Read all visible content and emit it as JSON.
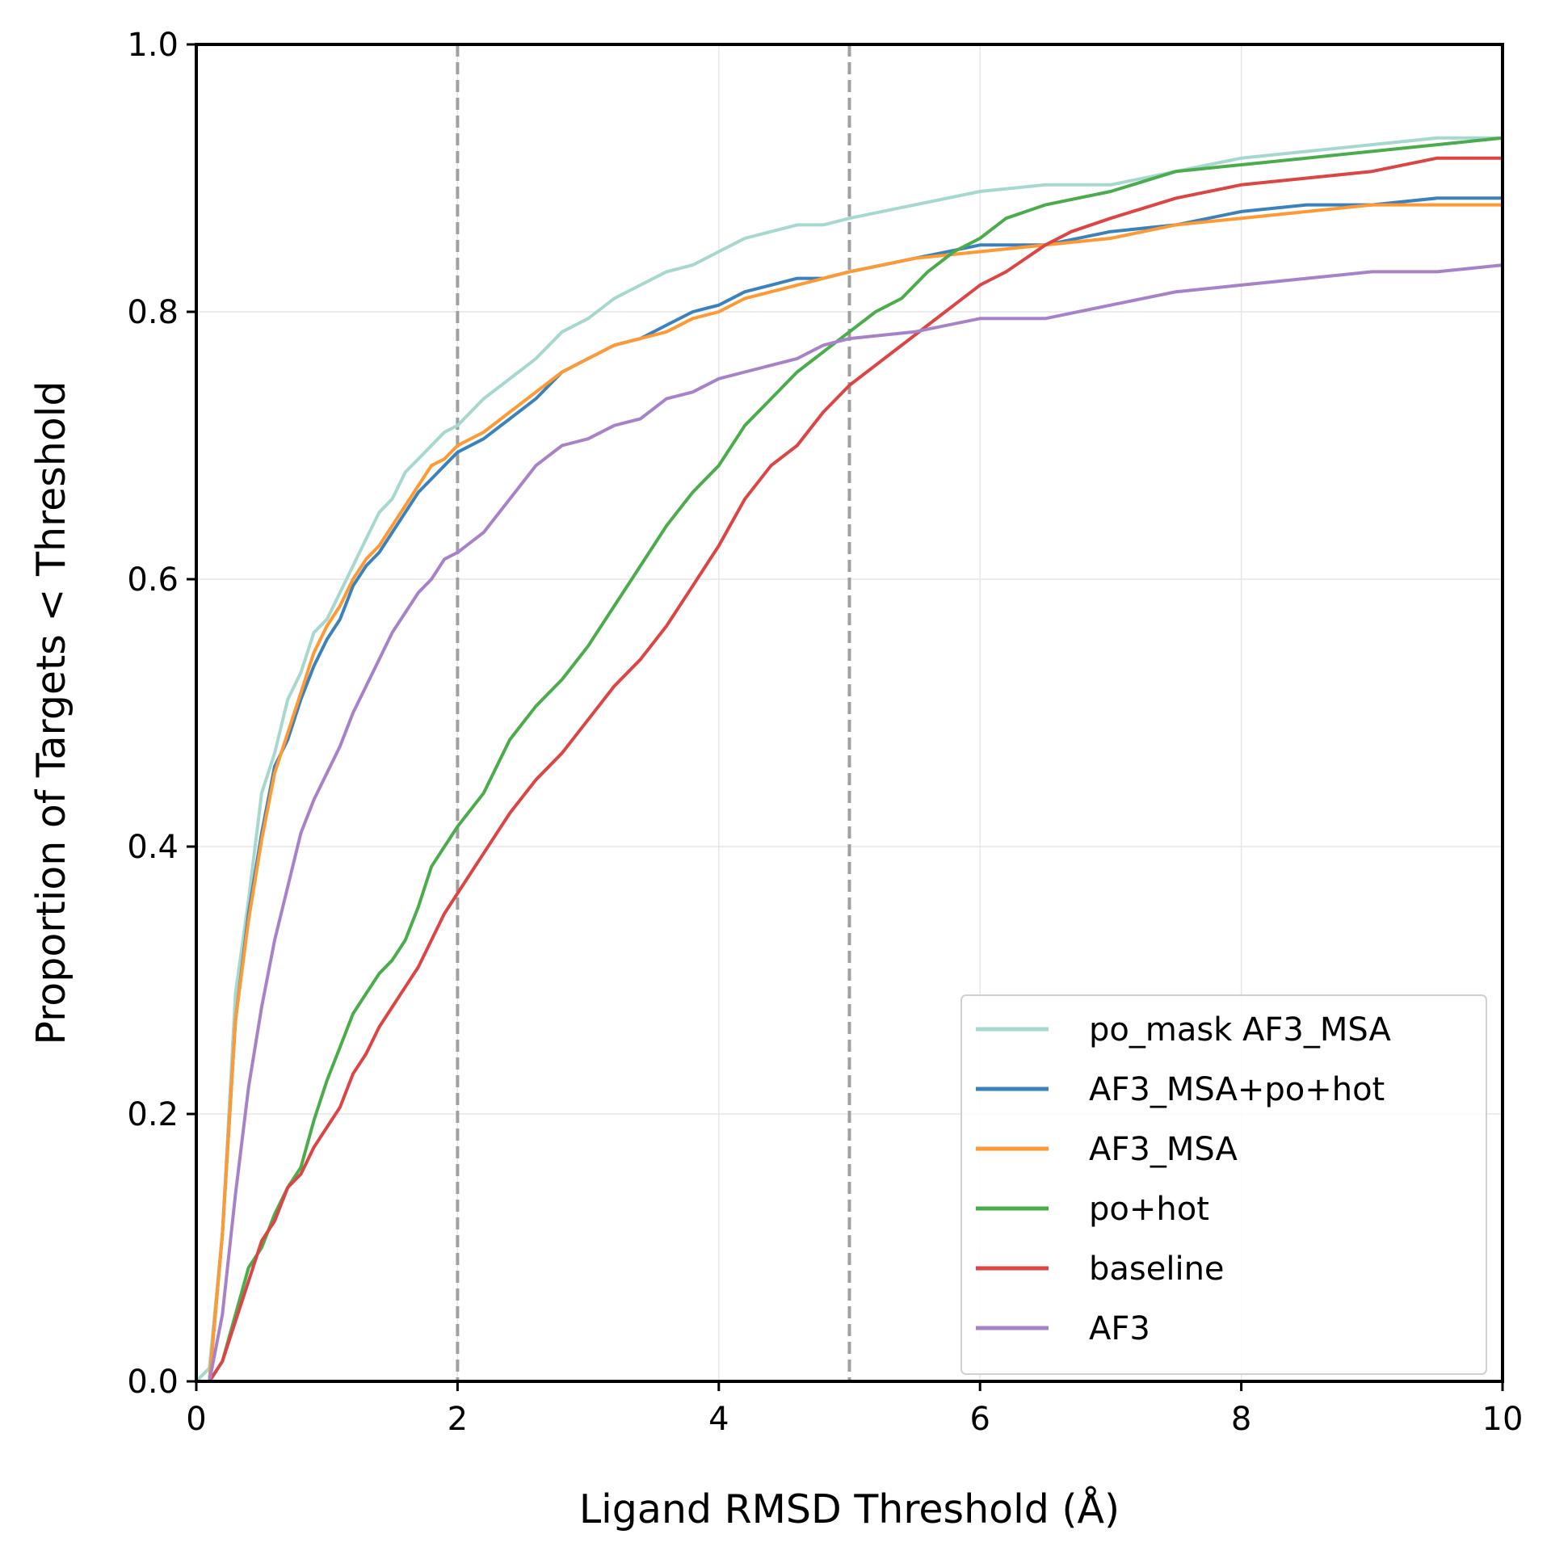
{
  "chart_data": {
    "type": "line",
    "title": "",
    "xlabel": "Ligand RMSD Threshold (Å)",
    "ylabel": "Proportion of Targets < Threshold",
    "xlim": [
      0,
      10
    ],
    "ylim": [
      0,
      1
    ],
    "xticks": [
      "0",
      "2",
      "4",
      "6",
      "8",
      "10"
    ],
    "yticks": [
      "0.0",
      "0.2",
      "0.4",
      "0.6",
      "0.8",
      "1.0"
    ],
    "grid": true,
    "legend_position": "lower-right",
    "reference_lines": [
      2,
      5
    ],
    "reference_line_color": "#a0a0a0",
    "series": [
      {
        "name": "po_mask AF3_MSA",
        "color": "#a6d8cf",
        "points": [
          [
            0,
            0
          ],
          [
            0.1,
            0.01
          ],
          [
            0.2,
            0.11
          ],
          [
            0.3,
            0.29
          ],
          [
            0.4,
            0.36
          ],
          [
            0.5,
            0.44
          ],
          [
            0.6,
            0.47
          ],
          [
            0.7,
            0.51
          ],
          [
            0.8,
            0.53
          ],
          [
            0.9,
            0.56
          ],
          [
            1.0,
            0.57
          ],
          [
            1.1,
            0.59
          ],
          [
            1.2,
            0.61
          ],
          [
            1.3,
            0.63
          ],
          [
            1.4,
            0.65
          ],
          [
            1.5,
            0.66
          ],
          [
            1.6,
            0.68
          ],
          [
            1.7,
            0.69
          ],
          [
            1.8,
            0.7
          ],
          [
            1.9,
            0.71
          ],
          [
            2.0,
            0.715
          ],
          [
            2.2,
            0.735
          ],
          [
            2.4,
            0.75
          ],
          [
            2.6,
            0.765
          ],
          [
            2.8,
            0.785
          ],
          [
            3.0,
            0.795
          ],
          [
            3.2,
            0.81
          ],
          [
            3.4,
            0.82
          ],
          [
            3.6,
            0.83
          ],
          [
            3.8,
            0.835
          ],
          [
            4.0,
            0.845
          ],
          [
            4.2,
            0.855
          ],
          [
            4.4,
            0.86
          ],
          [
            4.6,
            0.865
          ],
          [
            4.8,
            0.865
          ],
          [
            5.0,
            0.87
          ],
          [
            5.5,
            0.88
          ],
          [
            6.0,
            0.89
          ],
          [
            6.5,
            0.895
          ],
          [
            7.0,
            0.895
          ],
          [
            7.5,
            0.905
          ],
          [
            8.0,
            0.915
          ],
          [
            8.5,
            0.92
          ],
          [
            9.0,
            0.925
          ],
          [
            9.5,
            0.93
          ],
          [
            10,
            0.93
          ]
        ]
      },
      {
        "name": "AF3_MSA+po+hot",
        "color": "#3b82bd",
        "points": [
          [
            0,
            0
          ],
          [
            0.1,
            0.0
          ],
          [
            0.2,
            0.11
          ],
          [
            0.3,
            0.27
          ],
          [
            0.4,
            0.35
          ],
          [
            0.5,
            0.41
          ],
          [
            0.6,
            0.46
          ],
          [
            0.7,
            0.48
          ],
          [
            0.8,
            0.51
          ],
          [
            0.9,
            0.535
          ],
          [
            1.0,
            0.555
          ],
          [
            1.1,
            0.57
          ],
          [
            1.2,
            0.595
          ],
          [
            1.3,
            0.61
          ],
          [
            1.4,
            0.62
          ],
          [
            1.5,
            0.635
          ],
          [
            1.6,
            0.65
          ],
          [
            1.7,
            0.665
          ],
          [
            1.8,
            0.675
          ],
          [
            1.9,
            0.685
          ],
          [
            2.0,
            0.695
          ],
          [
            2.2,
            0.705
          ],
          [
            2.4,
            0.72
          ],
          [
            2.6,
            0.735
          ],
          [
            2.8,
            0.755
          ],
          [
            3.0,
            0.765
          ],
          [
            3.2,
            0.775
          ],
          [
            3.4,
            0.78
          ],
          [
            3.6,
            0.79
          ],
          [
            3.8,
            0.8
          ],
          [
            4.0,
            0.805
          ],
          [
            4.2,
            0.815
          ],
          [
            4.4,
            0.82
          ],
          [
            4.6,
            0.825
          ],
          [
            4.8,
            0.825
          ],
          [
            5.0,
            0.83
          ],
          [
            5.5,
            0.84
          ],
          [
            6.0,
            0.85
          ],
          [
            6.5,
            0.85
          ],
          [
            7.0,
            0.86
          ],
          [
            7.5,
            0.865
          ],
          [
            8.0,
            0.875
          ],
          [
            8.5,
            0.88
          ],
          [
            9.0,
            0.88
          ],
          [
            9.5,
            0.885
          ],
          [
            10,
            0.885
          ]
        ]
      },
      {
        "name": "AF3_MSA",
        "color": "#ff9933",
        "points": [
          [
            0,
            0
          ],
          [
            0.1,
            0.0
          ],
          [
            0.2,
            0.11
          ],
          [
            0.3,
            0.27
          ],
          [
            0.4,
            0.345
          ],
          [
            0.5,
            0.405
          ],
          [
            0.6,
            0.455
          ],
          [
            0.7,
            0.485
          ],
          [
            0.8,
            0.515
          ],
          [
            0.9,
            0.545
          ],
          [
            1.0,
            0.565
          ],
          [
            1.1,
            0.58
          ],
          [
            1.2,
            0.6
          ],
          [
            1.3,
            0.615
          ],
          [
            1.4,
            0.625
          ],
          [
            1.5,
            0.64
          ],
          [
            1.6,
            0.655
          ],
          [
            1.7,
            0.67
          ],
          [
            1.8,
            0.685
          ],
          [
            1.9,
            0.69
          ],
          [
            2.0,
            0.7
          ],
          [
            2.2,
            0.71
          ],
          [
            2.4,
            0.725
          ],
          [
            2.6,
            0.74
          ],
          [
            2.8,
            0.755
          ],
          [
            3.0,
            0.765
          ],
          [
            3.2,
            0.775
          ],
          [
            3.4,
            0.78
          ],
          [
            3.6,
            0.785
          ],
          [
            3.8,
            0.795
          ],
          [
            4.0,
            0.8
          ],
          [
            4.2,
            0.81
          ],
          [
            4.4,
            0.815
          ],
          [
            4.6,
            0.82
          ],
          [
            4.8,
            0.825
          ],
          [
            5.0,
            0.83
          ],
          [
            5.5,
            0.84
          ],
          [
            6.0,
            0.845
          ],
          [
            6.5,
            0.85
          ],
          [
            7.0,
            0.855
          ],
          [
            7.5,
            0.865
          ],
          [
            8.0,
            0.87
          ],
          [
            8.5,
            0.875
          ],
          [
            9.0,
            0.88
          ],
          [
            9.5,
            0.88
          ],
          [
            10,
            0.88
          ]
        ]
      },
      {
        "name": "po+hot",
        "color": "#4aac4a",
        "points": [
          [
            0,
            0
          ],
          [
            0.1,
            0.0
          ],
          [
            0.2,
            0.015
          ],
          [
            0.3,
            0.05
          ],
          [
            0.4,
            0.085
          ],
          [
            0.5,
            0.1
          ],
          [
            0.6,
            0.125
          ],
          [
            0.7,
            0.145
          ],
          [
            0.8,
            0.16
          ],
          [
            0.9,
            0.195
          ],
          [
            1.0,
            0.225
          ],
          [
            1.1,
            0.25
          ],
          [
            1.2,
            0.275
          ],
          [
            1.3,
            0.29
          ],
          [
            1.4,
            0.305
          ],
          [
            1.5,
            0.315
          ],
          [
            1.6,
            0.33
          ],
          [
            1.7,
            0.355
          ],
          [
            1.8,
            0.385
          ],
          [
            1.9,
            0.4
          ],
          [
            2.0,
            0.415
          ],
          [
            2.2,
            0.44
          ],
          [
            2.4,
            0.48
          ],
          [
            2.6,
            0.505
          ],
          [
            2.8,
            0.525
          ],
          [
            3.0,
            0.55
          ],
          [
            3.2,
            0.58
          ],
          [
            3.4,
            0.61
          ],
          [
            3.6,
            0.64
          ],
          [
            3.8,
            0.665
          ],
          [
            4.0,
            0.685
          ],
          [
            4.2,
            0.715
          ],
          [
            4.4,
            0.735
          ],
          [
            4.6,
            0.755
          ],
          [
            4.8,
            0.77
          ],
          [
            5.0,
            0.785
          ],
          [
            5.2,
            0.8
          ],
          [
            5.4,
            0.81
          ],
          [
            5.6,
            0.83
          ],
          [
            5.8,
            0.845
          ],
          [
            6.0,
            0.855
          ],
          [
            6.2,
            0.87
          ],
          [
            6.5,
            0.88
          ],
          [
            7.0,
            0.89
          ],
          [
            7.5,
            0.905
          ],
          [
            8.0,
            0.91
          ],
          [
            8.5,
            0.915
          ],
          [
            9.0,
            0.92
          ],
          [
            9.5,
            0.925
          ],
          [
            10,
            0.93
          ]
        ]
      },
      {
        "name": "baseline",
        "color": "#dd4444",
        "points": [
          [
            0,
            0
          ],
          [
            0.1,
            0.0
          ],
          [
            0.2,
            0.015
          ],
          [
            0.3,
            0.045
          ],
          [
            0.4,
            0.075
          ],
          [
            0.5,
            0.105
          ],
          [
            0.6,
            0.12
          ],
          [
            0.7,
            0.145
          ],
          [
            0.8,
            0.155
          ],
          [
            0.9,
            0.175
          ],
          [
            1.0,
            0.19
          ],
          [
            1.1,
            0.205
          ],
          [
            1.2,
            0.23
          ],
          [
            1.3,
            0.245
          ],
          [
            1.4,
            0.265
          ],
          [
            1.5,
            0.28
          ],
          [
            1.6,
            0.295
          ],
          [
            1.7,
            0.31
          ],
          [
            1.8,
            0.33
          ],
          [
            1.9,
            0.35
          ],
          [
            2.0,
            0.365
          ],
          [
            2.2,
            0.395
          ],
          [
            2.4,
            0.425
          ],
          [
            2.6,
            0.45
          ],
          [
            2.8,
            0.47
          ],
          [
            3.0,
            0.495
          ],
          [
            3.2,
            0.52
          ],
          [
            3.4,
            0.54
          ],
          [
            3.6,
            0.565
          ],
          [
            3.8,
            0.595
          ],
          [
            4.0,
            0.625
          ],
          [
            4.2,
            0.66
          ],
          [
            4.4,
            0.685
          ],
          [
            4.6,
            0.7
          ],
          [
            4.8,
            0.725
          ],
          [
            5.0,
            0.745
          ],
          [
            5.2,
            0.76
          ],
          [
            5.4,
            0.775
          ],
          [
            5.6,
            0.79
          ],
          [
            5.8,
            0.805
          ],
          [
            6.0,
            0.82
          ],
          [
            6.2,
            0.83
          ],
          [
            6.5,
            0.85
          ],
          [
            6.7,
            0.86
          ],
          [
            7.0,
            0.87
          ],
          [
            7.5,
            0.885
          ],
          [
            8.0,
            0.895
          ],
          [
            8.5,
            0.9
          ],
          [
            9.0,
            0.905
          ],
          [
            9.5,
            0.915
          ],
          [
            10,
            0.915
          ]
        ]
      },
      {
        "name": "AF3",
        "color": "#a782c8",
        "points": [
          [
            0,
            0
          ],
          [
            0.1,
            0.0
          ],
          [
            0.2,
            0.05
          ],
          [
            0.3,
            0.14
          ],
          [
            0.4,
            0.22
          ],
          [
            0.5,
            0.28
          ],
          [
            0.6,
            0.33
          ],
          [
            0.7,
            0.37
          ],
          [
            0.8,
            0.41
          ],
          [
            0.9,
            0.435
          ],
          [
            1.0,
            0.455
          ],
          [
            1.1,
            0.475
          ],
          [
            1.2,
            0.5
          ],
          [
            1.3,
            0.52
          ],
          [
            1.4,
            0.54
          ],
          [
            1.5,
            0.56
          ],
          [
            1.6,
            0.575
          ],
          [
            1.7,
            0.59
          ],
          [
            1.8,
            0.6
          ],
          [
            1.9,
            0.615
          ],
          [
            2.0,
            0.62
          ],
          [
            2.2,
            0.635
          ],
          [
            2.4,
            0.66
          ],
          [
            2.6,
            0.685
          ],
          [
            2.8,
            0.7
          ],
          [
            3.0,
            0.705
          ],
          [
            3.2,
            0.715
          ],
          [
            3.4,
            0.72
          ],
          [
            3.6,
            0.735
          ],
          [
            3.8,
            0.74
          ],
          [
            4.0,
            0.75
          ],
          [
            4.2,
            0.755
          ],
          [
            4.4,
            0.76
          ],
          [
            4.6,
            0.765
          ],
          [
            4.8,
            0.775
          ],
          [
            5.0,
            0.78
          ],
          [
            5.5,
            0.785
          ],
          [
            6.0,
            0.795
          ],
          [
            6.5,
            0.795
          ],
          [
            7.0,
            0.805
          ],
          [
            7.5,
            0.815
          ],
          [
            8.0,
            0.82
          ],
          [
            8.5,
            0.825
          ],
          [
            9.0,
            0.83
          ],
          [
            9.5,
            0.83
          ],
          [
            10,
            0.835
          ]
        ]
      }
    ]
  }
}
